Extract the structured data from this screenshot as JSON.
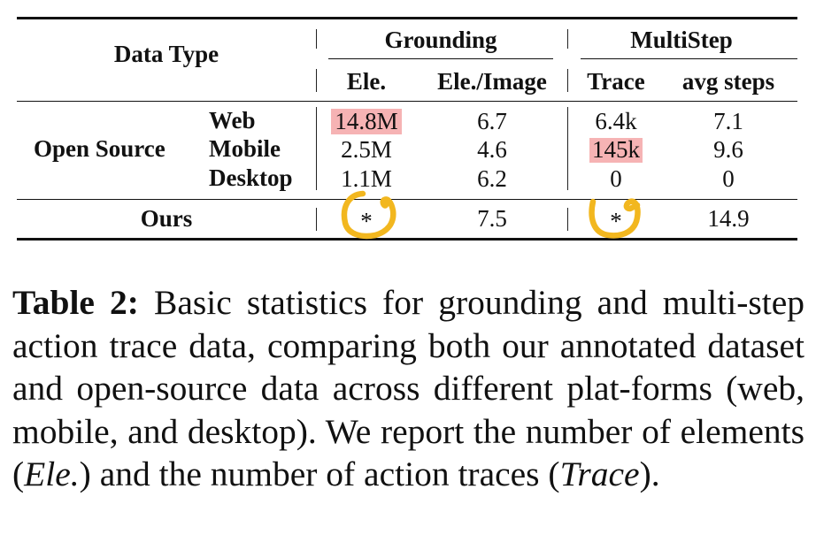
{
  "table": {
    "row_header_label": "Data Type",
    "groups": {
      "grounding": "Grounding",
      "multistep": "MultiStep"
    },
    "columns": {
      "ele": "Ele.",
      "ele_per_image": "Ele./Image",
      "trace": "Trace",
      "avg_steps": "avg steps"
    },
    "open_source": {
      "label": "Open Source",
      "rows": [
        {
          "platform": "Web",
          "ele": "14.8M",
          "ele_per_image": "6.7",
          "trace": "6.4k",
          "avg_steps": "7.1"
        },
        {
          "platform": "Mobile",
          "ele": "2.5M",
          "ele_per_image": "4.6",
          "trace": "145k",
          "avg_steps": "9.6"
        },
        {
          "platform": "Desktop",
          "ele": "1.1M",
          "ele_per_image": "6.2",
          "trace": "0",
          "avg_steps": "0"
        }
      ]
    },
    "ours": {
      "label": "Ours",
      "ele": "*",
      "ele_per_image": "7.5",
      "trace": "*",
      "avg_steps": "14.9"
    },
    "highlight_color": "#f6b3b4",
    "annotation_color": "#f2b71f"
  },
  "caption": {
    "label": "Table 2:",
    "part1": " Basic statistics for grounding and multi-step action trace data, comparing both our annotated dataset and open-source data across different plat-forms (web, mobile, and desktop).  We report the number of elements (",
    "ele_italic": "Ele.",
    "part2": ") and the number of action traces (",
    "trace_italic": "Trace",
    "part3": ")."
  }
}
